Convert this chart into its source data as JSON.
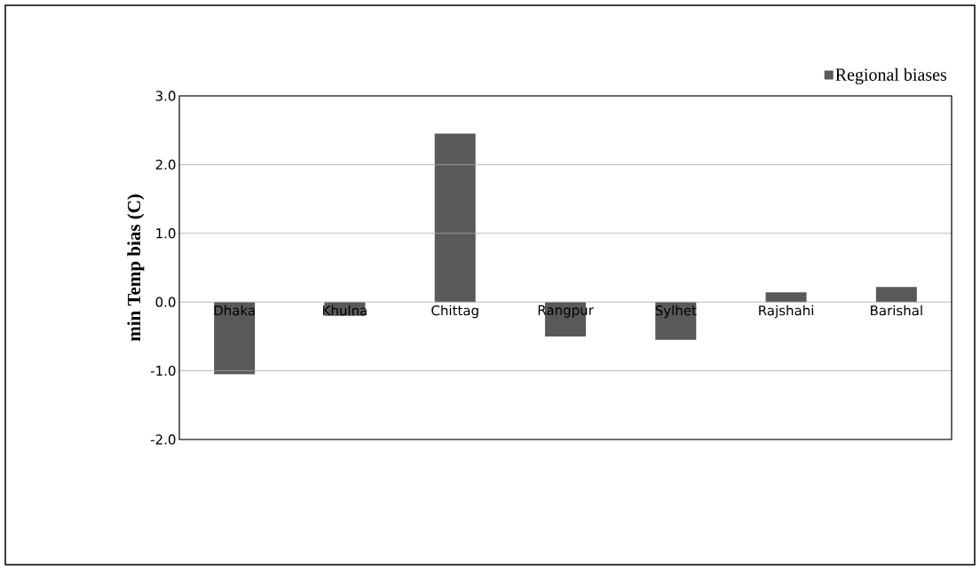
{
  "chart_data": {
    "type": "bar",
    "ylabel": "min Temp bias (C)",
    "categories": [
      "Dhaka",
      "Khulna",
      "Chittag",
      "Rangpur",
      "Sylhet",
      "Rajshahi",
      "Barishal"
    ],
    "series": [
      {
        "name": "Regional biases",
        "color": "#595959",
        "values": [
          -1.05,
          -0.2,
          2.45,
          -0.5,
          -0.55,
          0.14,
          0.22
        ]
      }
    ],
    "ylim": [
      -2,
      3
    ],
    "yticks": [
      {
        "value": -2,
        "label": "-2.0"
      },
      {
        "value": -1,
        "label": "-1.0"
      },
      {
        "value": 0,
        "label": "0.0"
      },
      {
        "value": 1,
        "label": "1.0"
      },
      {
        "value": 2,
        "label": "2.0"
      },
      {
        "value": 3,
        "label": "3.0"
      }
    ],
    "grid": "y",
    "legend": "top right"
  }
}
